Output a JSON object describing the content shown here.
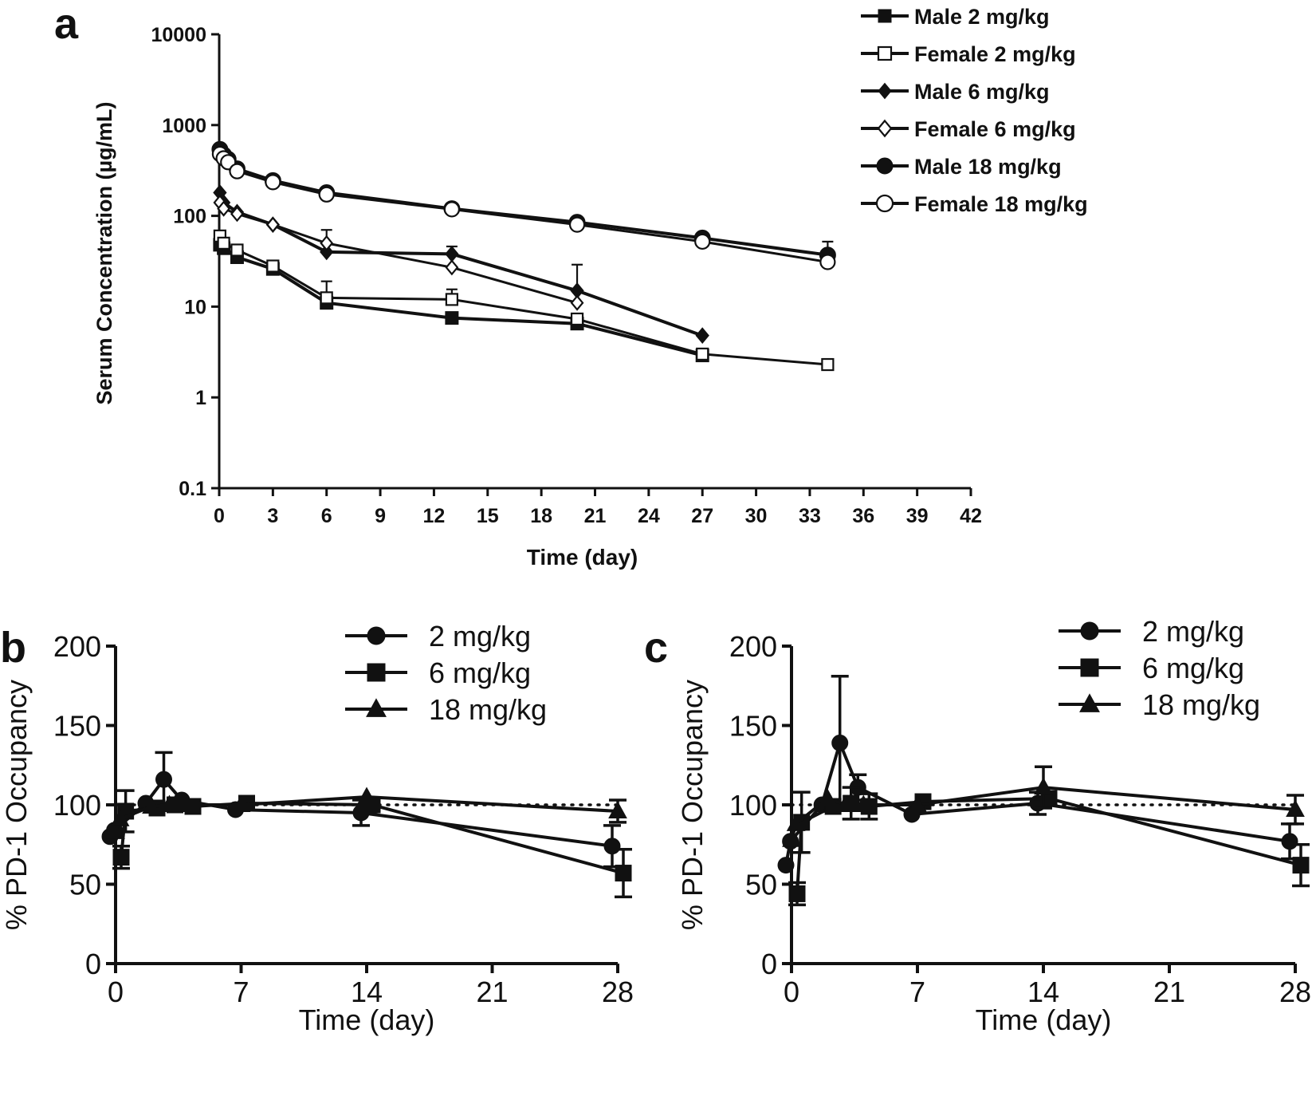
{
  "colors": {
    "ink": "#111111",
    "background": "#ffffff"
  },
  "chart_data": [
    {
      "panel": "a",
      "type": "line",
      "yscale": "log",
      "xlabel": "Time (day)",
      "ylabel": "Serum Concentration (µg/mL)",
      "xlim": [
        0,
        42
      ],
      "xticks": [
        0,
        3,
        6,
        9,
        12,
        15,
        18,
        21,
        24,
        27,
        30,
        33,
        36,
        39,
        42
      ],
      "ylim": [
        0.1,
        10000
      ],
      "yticks": [
        0.1,
        1,
        10,
        100,
        1000,
        10000
      ],
      "ytick_labels": [
        "0.1",
        "1",
        "10",
        "100",
        "1000",
        "10000"
      ],
      "legend_position": "top-right",
      "series": [
        {
          "name": "Male 2 mg/kg",
          "marker": "square",
          "filled": true,
          "x": [
            0.04,
            0.25,
            1,
            3,
            6,
            13,
            20,
            27
          ],
          "y": [
            48,
            44,
            35,
            26,
            11,
            7.5,
            6.5,
            2.9
          ]
        },
        {
          "name": "Female 2 mg/kg",
          "marker": "square",
          "filled": false,
          "x": [
            0.04,
            0.25,
            1,
            3,
            6,
            13,
            20,
            27,
            34
          ],
          "y": [
            60,
            50,
            42,
            28,
            12.5,
            12,
            7.3,
            3.0,
            2.3
          ]
        },
        {
          "name": "Male 6 mg/kg",
          "marker": "diamond",
          "filled": true,
          "x": [
            0.04,
            0.25,
            1,
            3,
            6,
            13,
            20,
            27
          ],
          "y": [
            180,
            140,
            110,
            80,
            40,
            38,
            15,
            4.8
          ]
        },
        {
          "name": "Female 6 mg/kg",
          "marker": "diamond",
          "filled": false,
          "x": [
            0.04,
            0.25,
            1,
            3,
            6,
            13,
            20
          ],
          "y": [
            140,
            120,
            105,
            80,
            50,
            27,
            11
          ]
        },
        {
          "name": "Male 18 mg/kg",
          "marker": "circle",
          "filled": true,
          "x": [
            0.04,
            0.25,
            0.5,
            1,
            3,
            6,
            13,
            20,
            27,
            34
          ],
          "y": [
            540,
            470,
            420,
            330,
            245,
            180,
            120,
            85,
            57,
            37
          ]
        },
        {
          "name": "Female 18 mg/kg",
          "marker": "circle",
          "filled": false,
          "x": [
            0.04,
            0.25,
            0.5,
            1,
            3,
            6,
            13,
            20,
            27,
            34
          ],
          "y": [
            480,
            430,
            390,
            310,
            235,
            172,
            118,
            80,
            52,
            31
          ]
        }
      ]
    },
    {
      "panel": "b",
      "type": "line",
      "xlabel": "Time (day)",
      "ylabel": "% PD-1 Occupancy",
      "xlim": [
        0,
        28
      ],
      "xticks": [
        0,
        7,
        14,
        21,
        28
      ],
      "ylim": [
        0,
        200
      ],
      "yticks": [
        0,
        50,
        100,
        150,
        200
      ],
      "reference_line": 100,
      "legend_position": "top-right",
      "series": [
        {
          "name": "2 mg/kg",
          "marker": "circle",
          "x": [
            0,
            0.25,
            2,
            3,
            4,
            7,
            14,
            28
          ],
          "y": [
            80,
            84,
            101,
            116,
            103,
            97,
            95,
            74
          ],
          "err": [
            0,
            0,
            0,
            17,
            0,
            0,
            8,
            13
          ]
        },
        {
          "name": "6 mg/kg",
          "marker": "square",
          "x": [
            0,
            0.25,
            2,
            3,
            4,
            7,
            14,
            28
          ],
          "y": [
            67,
            96,
            98,
            100,
            99,
            101,
            100,
            57
          ],
          "err": [
            7,
            13,
            0,
            0,
            0,
            0,
            0,
            15
          ]
        },
        {
          "name": "18 mg/kg",
          "marker": "triangle",
          "x": [
            0,
            0.25,
            2,
            3,
            4,
            7,
            14,
            28
          ],
          "y": [
            83,
            91,
            99,
            100,
            100,
            100,
            105,
            96
          ],
          "err": [
            0,
            0,
            0,
            0,
            0,
            0,
            0,
            7
          ]
        }
      ]
    },
    {
      "panel": "c",
      "type": "line",
      "xlabel": "Time (day)",
      "ylabel": "% PD-1 Occupancy",
      "xlim": [
        0,
        28
      ],
      "xticks": [
        0,
        7,
        14,
        21,
        28
      ],
      "ylim": [
        0,
        200
      ],
      "yticks": [
        0,
        50,
        100,
        150,
        200
      ],
      "reference_line": 100,
      "legend_position": "top-right",
      "series": [
        {
          "name": "2 mg/kg",
          "marker": "circle",
          "x": [
            0,
            0.25,
            2,
            3,
            4,
            7,
            14,
            28
          ],
          "y": [
            62,
            77,
            100,
            139,
            111,
            94,
            101,
            77
          ],
          "err": [
            0,
            0,
            0,
            42,
            8,
            0,
            7,
            11
          ]
        },
        {
          "name": "6 mg/kg",
          "marker": "square",
          "x": [
            0,
            0.25,
            2,
            3,
            4,
            7,
            14,
            28
          ],
          "y": [
            44,
            89,
            99,
            101,
            99,
            102,
            104,
            62
          ],
          "err": [
            7,
            19,
            0,
            10,
            8,
            0,
            0,
            13
          ]
        },
        {
          "name": "18 mg/kg",
          "marker": "triangle",
          "x": [
            0,
            0.25,
            2,
            3,
            4,
            7,
            14,
            28
          ],
          "y": [
            78,
            88,
            104,
            100,
            100,
            100,
            111,
            97
          ],
          "err": [
            0,
            0,
            0,
            0,
            0,
            0,
            13,
            9
          ]
        }
      ]
    }
  ]
}
